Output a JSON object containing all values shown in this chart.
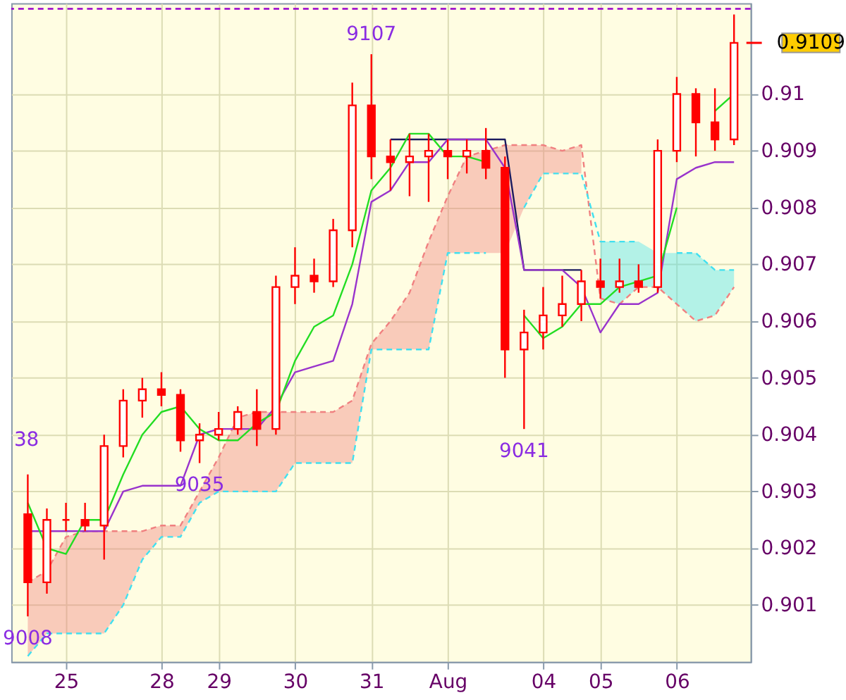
{
  "chart_data": {
    "type": "candlestick",
    "color": "#ff0000",
    "categories": [
      null,
      null,
      "25",
      null,
      null,
      null,
      null,
      "28",
      null,
      null,
      "29",
      null,
      null,
      null,
      "30",
      null,
      null,
      null,
      "31",
      null,
      null,
      null,
      "Aug",
      null,
      null,
      null,
      null,
      "04",
      null,
      null,
      "05",
      null,
      null,
      null,
      "06",
      null,
      null,
      null
    ],
    "ohlc": [
      [
        0.9026,
        0.9033,
        0.9008,
        0.9014
      ],
      [
        0.9014,
        0.9027,
        0.9012,
        0.9025
      ],
      [
        0.9025,
        0.9028,
        0.9023,
        0.9025
      ],
      [
        0.9025,
        0.9028,
        0.9023,
        0.9024
      ],
      [
        0.9024,
        0.904,
        0.9018,
        0.9038
      ],
      [
        0.9038,
        0.9048,
        0.9036,
        0.9046
      ],
      [
        0.9046,
        0.905,
        0.9043,
        0.9048
      ],
      [
        0.9048,
        0.9051,
        0.9045,
        0.9047
      ],
      [
        0.9047,
        0.9048,
        0.9037,
        0.9039
      ],
      [
        0.9039,
        0.9042,
        0.9035,
        0.904
      ],
      [
        0.904,
        0.9044,
        0.9039,
        0.9041
      ],
      [
        0.9041,
        0.9045,
        0.904,
        0.9044
      ],
      [
        0.9044,
        0.9048,
        0.9038,
        0.9041
      ],
      [
        0.9041,
        0.9068,
        0.904,
        0.9066
      ],
      [
        0.9066,
        0.9073,
        0.9063,
        0.9068
      ],
      [
        0.9068,
        0.9071,
        0.9065,
        0.9067
      ],
      [
        0.9067,
        0.9078,
        0.9066,
        0.9076
      ],
      [
        0.9076,
        0.9102,
        0.9073,
        0.9098
      ],
      [
        0.9098,
        0.9107,
        0.9085,
        0.9089
      ],
      [
        0.9089,
        0.9092,
        0.9083,
        0.9088
      ],
      [
        0.9088,
        0.9093,
        0.9082,
        0.9089
      ],
      [
        0.9089,
        0.9093,
        0.9081,
        0.909
      ],
      [
        0.909,
        0.9092,
        0.9085,
        0.9089
      ],
      [
        0.9089,
        0.9092,
        0.9086,
        0.909
      ],
      [
        0.909,
        0.9094,
        0.9085,
        0.9087
      ],
      [
        0.9087,
        0.9089,
        0.905,
        0.9055
      ],
      [
        0.9055,
        0.9062,
        0.9041,
        0.9058
      ],
      [
        0.9058,
        0.9066,
        0.9055,
        0.9061
      ],
      [
        0.9061,
        0.9068,
        0.9059,
        0.9063
      ],
      [
        0.9063,
        0.9069,
        0.906,
        0.9067
      ],
      [
        0.9067,
        0.9071,
        0.9064,
        0.9066
      ],
      [
        0.9066,
        0.9071,
        0.9065,
        0.9067
      ],
      [
        0.9067,
        0.907,
        0.9065,
        0.9066
      ],
      [
        0.9066,
        0.9092,
        0.9065,
        0.909
      ],
      [
        0.909,
        0.9103,
        0.9088,
        0.91
      ],
      [
        0.91,
        0.9101,
        0.9089,
        0.9095
      ],
      [
        0.9095,
        0.9101,
        0.909,
        0.9092
      ],
      [
        0.9092,
        0.9114,
        0.9091,
        0.9109
      ]
    ],
    "ylim": [
      0.9,
      0.9116
    ],
    "yticks": [
      0.901,
      0.902,
      0.903,
      0.904,
      0.905,
      0.906,
      0.907,
      0.908,
      0.909,
      0.91
    ],
    "grid": true,
    "series": [
      {
        "type": "line",
        "color": "#f08080",
        "line_style": "dashed",
        "values": [
          0.9014,
          0.9016,
          0.9022,
          0.9023,
          0.9023,
          0.9023,
          0.9023,
          0.9024,
          0.9024,
          0.903,
          0.9036,
          0.9043,
          0.9044,
          0.9044,
          0.9044,
          0.9044,
          0.9044,
          0.9046,
          0.9056,
          0.906,
          0.9065,
          0.9074,
          0.9082,
          0.9089,
          0.909,
          0.9091,
          0.9091,
          0.9091,
          0.909,
          0.9091,
          0.9064,
          0.9063,
          0.9066,
          0.9066,
          0.9063,
          0.906,
          0.9061,
          0.9066
        ],
        "upper": [
          0.9014,
          0.9016,
          0.9022,
          0.9023,
          0.9023,
          0.9023,
          0.9023,
          0.9024,
          0.9024,
          0.903,
          0.9036,
          0.9043,
          0.9044,
          0.9044,
          0.9044,
          0.9044,
          0.9044,
          0.9046,
          0.9056,
          0.906,
          0.9065,
          0.9074,
          0.9082,
          0.9089,
          0.909,
          0.9091,
          0.9091,
          0.9091,
          0.909,
          0.9091,
          null,
          null,
          null,
          null,
          null,
          null,
          null,
          null
        ],
        "lower": [
          0.9001,
          0.9005,
          0.9005,
          0.9005,
          0.9005,
          0.901,
          0.9018,
          0.9022,
          0.9022,
          0.9028,
          0.903,
          0.903,
          0.903,
          0.903,
          0.9035,
          0.9035,
          0.9035,
          0.9035,
          0.9055,
          0.9055,
          0.9055,
          0.9055,
          0.9072,
          0.9072,
          0.9072,
          0.9072,
          0.908,
          0.9086,
          0.9086,
          0.9086,
          null,
          null,
          null,
          null,
          null,
          null,
          null,
          null
        ]
      },
      {
        "type": "line",
        "color": "#40e0f0",
        "line_style": "dashed",
        "values": [
          0.9001,
          0.9005,
          0.9005,
          0.9005,
          0.9005,
          0.901,
          0.9018,
          0.9022,
          0.9022,
          0.9028,
          0.903,
          0.903,
          0.903,
          0.903,
          0.9035,
          0.9035,
          0.9035,
          0.9035,
          0.9055,
          0.9055,
          0.9055,
          0.9055,
          0.9072,
          0.9072,
          0.9072,
          null,
          0.908,
          0.9086,
          0.9086,
          0.9086,
          0.9074,
          0.9074,
          0.9074,
          null,
          0.9072,
          0.9072,
          0.9069,
          0.9069
        ],
        "upper": [
          null,
          null,
          null,
          null,
          null,
          null,
          null,
          null,
          null,
          null,
          null,
          null,
          null,
          null,
          null,
          null,
          null,
          null,
          null,
          null,
          null,
          null,
          null,
          null,
          null,
          null,
          null,
          null,
          null,
          null,
          0.9074,
          0.9074,
          0.9074,
          0.9072,
          0.9072,
          0.9072,
          0.9069,
          0.9069
        ],
        "lower": [
          null,
          null,
          null,
          null,
          null,
          null,
          null,
          null,
          null,
          null,
          null,
          null,
          null,
          null,
          null,
          null,
          null,
          null,
          null,
          null,
          null,
          null,
          null,
          null,
          null,
          null,
          null,
          null,
          null,
          null,
          0.9064,
          0.9063,
          0.9066,
          0.9066,
          0.9063,
          0.906,
          0.9061,
          0.9066
        ]
      },
      {
        "type": "line",
        "color": "#1c1c60",
        "values": [
          null,
          null,
          null,
          null,
          null,
          null,
          null,
          null,
          null,
          null,
          null,
          null,
          null,
          null,
          null,
          null,
          null,
          null,
          null,
          0.9092,
          0.9092,
          0.9092,
          0.9092,
          0.9092,
          0.9092,
          0.9092,
          0.9069,
          0.9069,
          0.9069,
          0.9069,
          null,
          null,
          null,
          null,
          null,
          null,
          null,
          null
        ]
      },
      {
        "type": "line",
        "color": "#9933cc",
        "values": [
          0.9023,
          0.9023,
          0.9023,
          0.9023,
          0.9023,
          0.903,
          0.9031,
          0.9031,
          0.9031,
          0.904,
          0.9041,
          0.9041,
          0.9041,
          0.9045,
          0.9051,
          0.9052,
          0.9053,
          0.9063,
          0.9081,
          0.9083,
          0.9088,
          0.9088,
          0.9092,
          0.9092,
          0.9092,
          0.9087,
          0.9069,
          0.9069,
          0.9069,
          0.9066,
          0.9058,
          0.9063,
          0.9063,
          0.9065,
          0.9085,
          0.9087,
          0.9088,
          0.9088
        ]
      },
      {
        "type": "line",
        "color": "#22dd22",
        "values": [
          0.9028,
          0.902,
          0.9019,
          0.9025,
          0.9025,
          0.9033,
          0.904,
          0.9044,
          0.9045,
          0.9041,
          0.9039,
          0.9039,
          0.9042,
          0.9044,
          0.9053,
          0.9059,
          0.9061,
          0.907,
          0.9083,
          0.9087,
          0.9093,
          0.9093,
          0.9089,
          0.9089,
          0.9088,
          null,
          0.9061,
          0.9057,
          0.9059,
          0.9063,
          0.9063,
          0.9066,
          0.9067,
          0.9068,
          0.908,
          null,
          0.9097,
          0.91
        ]
      }
    ],
    "annotations": [
      {
        "text": "9107",
        "y": 0.9107
      },
      {
        "text": "9035",
        "y": 0.9035
      },
      {
        "text": "9008",
        "y": 0.9008
      },
      {
        "text": "9041",
        "y": 0.9041
      },
      "38",
      "0.9109"
    ],
    "ref_lines": [
      {
        "axis": "y",
        "value": 0.9115,
        "color": "#9900cc",
        "line_style": "dashed"
      }
    ]
  }
}
